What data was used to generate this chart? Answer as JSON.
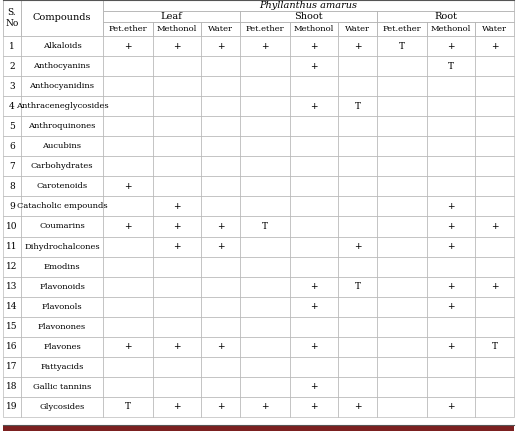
{
  "species": "Phyllanthus amarus",
  "col_groups": [
    "Leaf",
    "Shoot",
    "Root"
  ],
  "sub_cols": [
    "Pet.ether",
    "Methonol",
    "Water"
  ],
  "rows": [
    [
      1,
      "Alkaloids",
      "+",
      "+",
      "+",
      "+",
      "+",
      "+",
      "T",
      "+",
      "+"
    ],
    [
      2,
      "Anthocyanins",
      "",
      "",
      "",
      "",
      "+",
      "",
      "",
      "T",
      ""
    ],
    [
      3,
      "Anthocyanidins",
      "",
      "",
      "",
      "",
      "",
      "",
      "",
      "",
      ""
    ],
    [
      4,
      "Anthraceneglycosides",
      "",
      "",
      "",
      "",
      "+",
      "T",
      "",
      "",
      ""
    ],
    [
      5,
      "Anthroquinones",
      "",
      "",
      "",
      "",
      "",
      "",
      "",
      "",
      ""
    ],
    [
      6,
      "Aucubins",
      "",
      "",
      "",
      "",
      "",
      "",
      "",
      "",
      ""
    ],
    [
      7,
      "Carbohydrates",
      "",
      "",
      "",
      "",
      "",
      "",
      "",
      "",
      ""
    ],
    [
      8,
      "Carotenoids",
      "+",
      "",
      "",
      "",
      "",
      "",
      "",
      "",
      ""
    ],
    [
      9,
      "Catacholic empounds",
      "",
      "+",
      "",
      "",
      "",
      "",
      "",
      "+",
      ""
    ],
    [
      10,
      "Coumarins",
      "+",
      "+",
      "+",
      "T",
      "",
      "",
      "",
      "+",
      "+"
    ],
    [
      11,
      "Dihydrochalcones",
      "",
      "+",
      "+",
      "",
      "",
      "+",
      "",
      "+",
      ""
    ],
    [
      12,
      "Emodins",
      "",
      "",
      "",
      "",
      "",
      "",
      "",
      "",
      ""
    ],
    [
      13,
      "Flavonoids",
      "",
      "",
      "",
      "",
      "+",
      "T",
      "",
      "+",
      "+"
    ],
    [
      14,
      "Flavonols",
      "",
      "",
      "",
      "",
      "+",
      "",
      "",
      "+",
      ""
    ],
    [
      15,
      "Flavonones",
      "",
      "",
      "",
      "",
      "",
      "",
      "",
      "",
      ""
    ],
    [
      16,
      "Flavones",
      "+",
      "+",
      "+",
      "",
      "+",
      "",
      "",
      "+",
      "T"
    ],
    [
      17,
      "Fattyacids",
      "",
      "",
      "",
      "",
      "",
      "",
      "",
      "",
      ""
    ],
    [
      18,
      "Gallic tannins",
      "",
      "",
      "",
      "",
      "+",
      "",
      "",
      "",
      ""
    ],
    [
      19,
      "Glycosides",
      "T",
      "+",
      "+",
      "+",
      "+",
      "+",
      "",
      "+",
      ""
    ]
  ],
  "bg_color": "#ffffff",
  "line_color": "#aaaaaa",
  "text_color": "#000000",
  "bottom_bar_color": "#7B2020"
}
